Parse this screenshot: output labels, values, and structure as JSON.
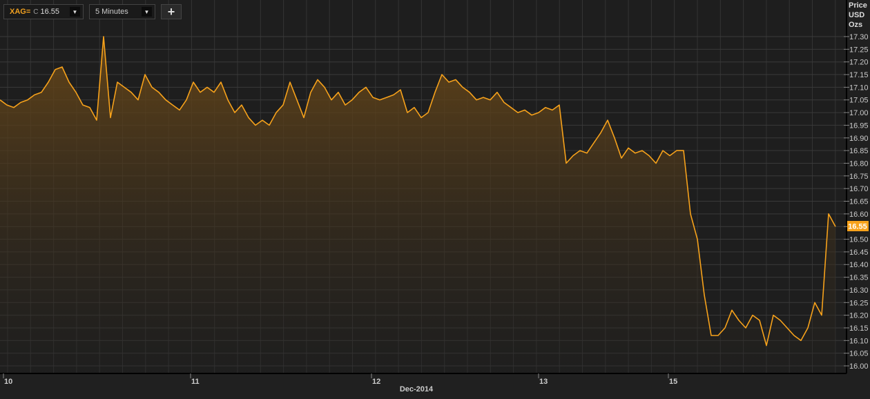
{
  "toolbar": {
    "ric": "XAG=",
    "close_prefix": "C",
    "close_value": "16.55",
    "interval": "5 Minutes",
    "add_label": "+"
  },
  "axis_unit": [
    "Price",
    "USD",
    "Ozs"
  ],
  "colors": {
    "line": "#f7a21b",
    "background": "#202020",
    "grid": "#3a3a3a",
    "last_badge": "#f7a21b"
  },
  "chart_data": {
    "type": "area",
    "title": "",
    "xlabel": "Dec-2014",
    "ylabel": "Price USD Ozs",
    "ylim": [
      16.0,
      17.3
    ],
    "yticks": [
      "16.00",
      "16.05",
      "16.10",
      "16.15",
      "16.20",
      "16.25",
      "16.30",
      "16.35",
      "16.40",
      "16.45",
      "16.50",
      "16.55",
      "16.60",
      "16.65",
      "16.70",
      "16.75",
      "16.80",
      "16.85",
      "16.90",
      "16.95",
      "17.00",
      "17.05",
      "17.10",
      "17.15",
      "17.20",
      "17.25",
      "17.30"
    ],
    "xticks": [
      {
        "label": "10",
        "at": 0.5
      },
      {
        "label": "11",
        "at": 27.6
      },
      {
        "label": "12",
        "at": 53.8
      },
      {
        "label": "13",
        "at": 78
      },
      {
        "label": "15",
        "at": 96.8
      }
    ],
    "last_value": "16.55",
    "grid": true,
    "series": [
      {
        "values": [
          17.05,
          17.03,
          17.02,
          17.04,
          17.05,
          17.07,
          17.08,
          17.12,
          17.17,
          17.18,
          17.12,
          17.08,
          17.03,
          17.02,
          16.97,
          17.3,
          16.98,
          17.12,
          17.1,
          17.08,
          17.05,
          17.15,
          17.1,
          17.08,
          17.05,
          17.03,
          17.01,
          17.05,
          17.12,
          17.08,
          17.1,
          17.08,
          17.12,
          17.05,
          17.0,
          17.03,
          16.98,
          16.95,
          16.97,
          16.95,
          17.0,
          17.03,
          17.12,
          17.05,
          16.98,
          17.08,
          17.13,
          17.1,
          17.05,
          17.08,
          17.03,
          17.05,
          17.08,
          17.1,
          17.06,
          17.05,
          17.06,
          17.07,
          17.09,
          17.0,
          17.02,
          16.98,
          17.0,
          17.08,
          17.15,
          17.12,
          17.13,
          17.1,
          17.08,
          17.05,
          17.06,
          17.05,
          17.08,
          17.04,
          17.02,
          17.0,
          17.01,
          16.99,
          17.0,
          17.02,
          17.01,
          17.03,
          16.8,
          16.83,
          16.85,
          16.84,
          16.88,
          16.92,
          16.97,
          16.9,
          16.82,
          16.86,
          16.84,
          16.85,
          16.83,
          16.8,
          16.85,
          16.83,
          16.85,
          16.85,
          16.6,
          16.5,
          16.28,
          16.12,
          16.12,
          16.15,
          16.22,
          16.18,
          16.15,
          16.2,
          16.18,
          16.08,
          16.2,
          16.18,
          16.15,
          16.12,
          16.1,
          16.15,
          16.25,
          16.2,
          16.6,
          16.55
        ]
      }
    ]
  }
}
